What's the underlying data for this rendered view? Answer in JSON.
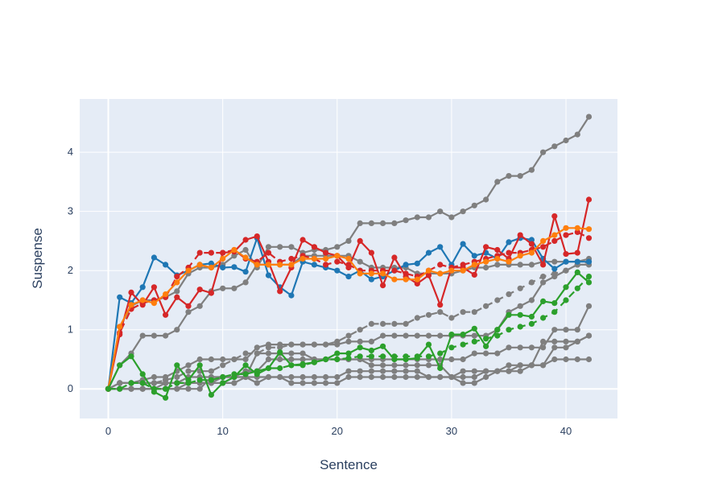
{
  "chart_data": {
    "type": "line",
    "xlabel": "Sentence",
    "ylabel": "Suspense",
    "xlim": [
      -2.5,
      44.5
    ],
    "ylim": [
      -0.5,
      4.9
    ],
    "xticks": [
      0,
      10,
      20,
      30,
      40
    ],
    "yticks": [
      0,
      1,
      2,
      3,
      4
    ],
    "grid": true,
    "legend": "none",
    "plot_background": "#e5ecf6",
    "series": [
      {
        "color": "#7f7f7f",
        "dash": "solid",
        "values": [
          0,
          1.05,
          1.4,
          1.5,
          1.5,
          1.55,
          1.65,
          1.95,
          2.05,
          2.05,
          2.1,
          2.25,
          2.35,
          2.05,
          2.4,
          2.4,
          2.4,
          2.3,
          2.35,
          2.35,
          2.4,
          2.5,
          2.8,
          2.8,
          2.8,
          2.8,
          2.85,
          2.9,
          2.9,
          3.0,
          2.9,
          3.0,
          3.1,
          3.2,
          3.5,
          3.6,
          3.6,
          3.7,
          4.0,
          4.1,
          4.2,
          4.3,
          4.6
        ]
      },
      {
        "color": "#7f7f7f",
        "dash": "solid",
        "values": [
          0,
          0.4,
          0.6,
          0.9,
          0.9,
          0.9,
          1.0,
          1.3,
          1.4,
          1.65,
          1.7,
          1.7,
          1.8,
          2.1,
          2.1,
          2.1,
          2.1,
          2.25,
          2.25,
          2.25,
          2.25,
          2.25,
          2.15,
          2.05,
          2.05,
          2.05,
          2.05,
          1.95,
          1.95,
          1.95,
          1.95,
          2.0,
          2.05,
          2.05,
          2.1,
          2.1,
          2.1,
          2.1,
          2.15,
          2.15,
          2.15,
          2.15,
          2.2
        ]
      },
      {
        "color": "#7f7f7f",
        "dash": "dash",
        "values": [
          0,
          0.1,
          0.1,
          0.1,
          0.1,
          0.15,
          0.2,
          0.3,
          0.3,
          0.3,
          0.4,
          0.5,
          0.6,
          0.6,
          0.7,
          0.7,
          0.75,
          0.75,
          0.75,
          0.75,
          0.8,
          0.9,
          1.0,
          1.1,
          1.1,
          1.1,
          1.1,
          1.2,
          1.25,
          1.3,
          1.2,
          1.3,
          1.3,
          1.4,
          1.5,
          1.6,
          1.7,
          1.8,
          1.9,
          1.95,
          2.0,
          2.1,
          2.15
        ]
      },
      {
        "color": "#7f7f7f",
        "dash": "solid",
        "values": [
          0,
          0.1,
          0.1,
          0.15,
          0.2,
          0.2,
          0.3,
          0.4,
          0.5,
          0.5,
          0.5,
          0.5,
          0.5,
          0.7,
          0.75,
          0.75,
          0.75,
          0.75,
          0.75,
          0.75,
          0.75,
          0.8,
          0.8,
          0.8,
          0.9,
          0.9,
          0.9,
          0.9,
          0.9,
          0.9,
          0.9,
          0.9,
          0.9,
          0.9,
          1.0,
          1.3,
          1.4,
          1.5,
          1.8,
          1.9,
          2.0,
          2.1,
          2.1
        ]
      },
      {
        "color": "#7f7f7f",
        "dash": "solid",
        "values": [
          0,
          0.1,
          0.1,
          0.1,
          0.1,
          0.1,
          0.1,
          0.2,
          0.2,
          0.2,
          0.2,
          0.2,
          0.2,
          0.6,
          0.6,
          0.6,
          0.6,
          0.6,
          0.5,
          0.5,
          0.5,
          0.5,
          0.5,
          0.5,
          0.5,
          0.5,
          0.5,
          0.5,
          0.5,
          0.5,
          0.5,
          0.5,
          0.6,
          0.6,
          0.6,
          0.7,
          0.7,
          0.7,
          0.7,
          1.0,
          1.0,
          1.0,
          1.4
        ]
      },
      {
        "color": "#7f7f7f",
        "dash": "solid",
        "values": [
          0,
          0,
          0,
          0,
          0,
          0,
          0,
          0.1,
          0.1,
          0.1,
          0.2,
          0.2,
          0.3,
          0.3,
          0.5,
          0.5,
          0.5,
          0.5,
          0.5,
          0.5,
          0.5,
          0.5,
          0.5,
          0.4,
          0.4,
          0.4,
          0.4,
          0.4,
          0.4,
          0.4,
          0.2,
          0.3,
          0.3,
          0.3,
          0.3,
          0.4,
          0.4,
          0.4,
          0.4,
          0.5,
          0.5,
          0.5,
          0.5
        ]
      },
      {
        "color": "#7f7f7f",
        "dash": "solid",
        "values": [
          0,
          0,
          0,
          0,
          0,
          0.1,
          0.1,
          0.1,
          0.1,
          0.1,
          0.1,
          0.1,
          0.2,
          0.2,
          0.2,
          0.2,
          0.1,
          0.1,
          0.1,
          0.1,
          0.1,
          0.2,
          0.2,
          0.2,
          0.2,
          0.2,
          0.2,
          0.2,
          0.2,
          0.2,
          0.2,
          0.2,
          0.2,
          0.3,
          0.3,
          0.3,
          0.3,
          0.4,
          0.4,
          0.7,
          0.7,
          0.8,
          0.9
        ]
      },
      {
        "color": "#7f7f7f",
        "dash": "solid",
        "values": [
          0,
          0,
          0,
          0,
          0,
          0,
          0,
          0,
          0,
          0.2,
          0.2,
          0.2,
          0.2,
          0.1,
          0.2,
          0.2,
          0.2,
          0.2,
          0.2,
          0.2,
          0.2,
          0.3,
          0.3,
          0.3,
          0.3,
          0.3,
          0.3,
          0.3,
          0.2,
          0.2,
          0.2,
          0.1,
          0.1,
          0.2,
          0.3,
          0.3,
          0.4,
          0.4,
          0.8,
          0.8,
          0.8,
          0.8,
          0.9
        ]
      },
      {
        "color": "#1f77b4",
        "dash": "solid",
        "values": [
          0,
          1.55,
          1.45,
          1.72,
          2.22,
          2.1,
          1.92,
          2.0,
          2.1,
          2.12,
          2.05,
          2.06,
          1.98,
          2.55,
          1.92,
          1.72,
          1.58,
          2.15,
          2.1,
          2.05,
          2.0,
          1.9,
          2.0,
          1.85,
          1.9,
          2.0,
          2.1,
          2.12,
          2.3,
          2.4,
          2.1,
          2.45,
          2.25,
          2.3,
          2.2,
          2.48,
          2.55,
          2.52,
          2.2,
          2.03,
          2.15,
          2.15,
          2.15
        ]
      },
      {
        "color": "#d62728",
        "dash": "dash",
        "values": [
          0,
          0.95,
          1.35,
          1.45,
          1.5,
          1.55,
          1.9,
          2.05,
          2.3,
          2.3,
          2.3,
          2.35,
          2.2,
          2.15,
          2.3,
          2.15,
          2.2,
          2.25,
          2.2,
          2.1,
          2.15,
          2.1,
          2.0,
          2.0,
          2.0,
          2.0,
          1.95,
          1.9,
          2.0,
          2.1,
          2.05,
          2.1,
          2.15,
          2.2,
          2.25,
          2.3,
          2.3,
          2.35,
          2.4,
          2.5,
          2.6,
          2.65,
          2.55
        ]
      },
      {
        "color": "#d62728",
        "dash": "solid",
        "values": [
          0,
          0.92,
          1.63,
          1.42,
          1.72,
          1.25,
          1.55,
          1.4,
          1.68,
          1.62,
          2.3,
          2.32,
          2.52,
          2.58,
          2.15,
          1.65,
          2.05,
          2.52,
          2.4,
          2.3,
          2.25,
          2.05,
          2.5,
          2.3,
          1.75,
          2.22,
          1.9,
          1.78,
          1.92,
          1.42,
          2.05,
          2.05,
          1.93,
          2.4,
          2.35,
          2.2,
          2.6,
          2.45,
          2.1,
          2.92,
          2.28,
          2.3,
          3.2
        ]
      },
      {
        "color": "#ff7f0e",
        "dash": "solid",
        "values": [
          0,
          1.05,
          1.42,
          1.5,
          1.45,
          1.6,
          1.8,
          2.0,
          2.1,
          2.05,
          2.2,
          2.35,
          2.22,
          2.1,
          2.1,
          2.1,
          2.1,
          2.2,
          2.2,
          2.2,
          2.25,
          2.2,
          1.95,
          1.95,
          1.95,
          1.85,
          1.85,
          1.85,
          2.0,
          1.95,
          2.0,
          2.0,
          2.1,
          2.15,
          2.2,
          2.15,
          2.25,
          2.3,
          2.5,
          2.6,
          2.72,
          2.72,
          2.7
        ]
      },
      {
        "color": "#2ca02c",
        "dash": "solid",
        "values": [
          0,
          0.4,
          0.55,
          0.25,
          -0.05,
          -0.15,
          0.4,
          0.15,
          0.4,
          -0.1,
          0.1,
          0.2,
          0.4,
          0.25,
          0.35,
          0.62,
          0.4,
          0.42,
          0.45,
          0.5,
          0.6,
          0.6,
          0.7,
          0.65,
          0.72,
          0.5,
          0.5,
          0.52,
          0.75,
          0.35,
          0.92,
          0.92,
          1.02,
          0.72,
          1.0,
          1.25,
          1.25,
          1.22,
          1.48,
          1.45,
          1.72,
          1.97,
          1.8
        ]
      },
      {
        "color": "#2ca02c",
        "dash": "dash",
        "values": [
          0,
          0,
          0.1,
          0.1,
          0,
          0,
          0.1,
          0.1,
          0.15,
          0.15,
          0.2,
          0.25,
          0.25,
          0.3,
          0.35,
          0.35,
          0.4,
          0.4,
          0.45,
          0.5,
          0.5,
          0.52,
          0.55,
          0.55,
          0.55,
          0.55,
          0.55,
          0.55,
          0.55,
          0.6,
          0.7,
          0.75,
          0.8,
          0.85,
          0.9,
          1.0,
          1.05,
          1.1,
          1.2,
          1.3,
          1.5,
          1.7,
          1.9
        ]
      }
    ]
  }
}
